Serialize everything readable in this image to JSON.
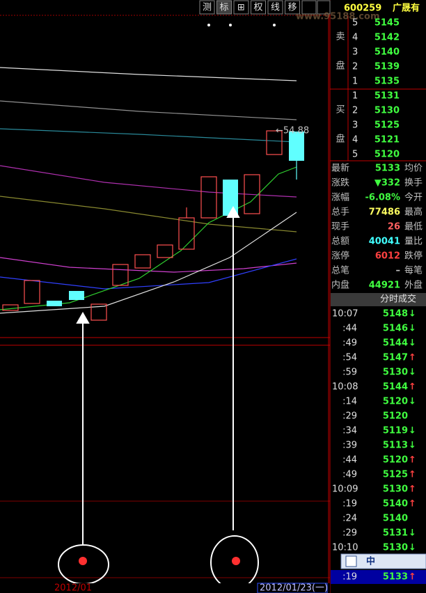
{
  "toolbar": {
    "buttons": [
      "测",
      "标",
      "⊞",
      "权",
      "线",
      "移"
    ],
    "stock_code": "600259",
    "stock_name": "广晟有",
    "watermark": "www.95188.com"
  },
  "order_book": {
    "sell_label": [
      "卖",
      "盘"
    ],
    "buy_label": [
      "买",
      "盘"
    ],
    "sell": [
      {
        "level": "5",
        "price": "5145"
      },
      {
        "level": "4",
        "price": "5142"
      },
      {
        "level": "3",
        "price": "5140"
      },
      {
        "level": "2",
        "price": "5139"
      },
      {
        "level": "1",
        "price": "5135"
      }
    ],
    "buy": [
      {
        "level": "1",
        "price": "5131"
      },
      {
        "level": "2",
        "price": "5130"
      },
      {
        "level": "3",
        "price": "5125"
      },
      {
        "level": "4",
        "price": "5121"
      },
      {
        "level": "5",
        "price": "5120"
      }
    ]
  },
  "quotes": [
    {
      "label": "最新",
      "value": "5133",
      "label2": "均价",
      "color": "#40ff40"
    },
    {
      "label": "涨跌",
      "value": "▼332",
      "label2": "换手",
      "color": "#40ff40"
    },
    {
      "label": "涨幅",
      "value": "-6.08%",
      "label2": "今开",
      "color": "#40ff40"
    },
    {
      "label": "总手",
      "value": "77486",
      "label2": "最高",
      "color": "#ffff60"
    },
    {
      "label": "现手",
      "value": "26",
      "label2": "最低",
      "color": "#ff6060"
    },
    {
      "label": "总额",
      "value": "40041",
      "label2": "量比",
      "color": "#40ffff"
    },
    {
      "label": "涨停",
      "value": "6012",
      "label2": "跌停",
      "color": "#ff4040"
    },
    {
      "label": "总笔",
      "value": "–",
      "label2": "每笔",
      "color": "#c0c0c0"
    },
    {
      "label": "内盘",
      "value": "44921",
      "label2": "外盘",
      "color": "#40ff40"
    }
  ],
  "ticks_title": "分时成交",
  "ticks": [
    {
      "time": "10:07",
      "price": "5148",
      "dir": "↓"
    },
    {
      "time": ":44",
      "price": "5146",
      "dir": "↓"
    },
    {
      "time": ":49",
      "price": "5144",
      "dir": "↓"
    },
    {
      "time": ":54",
      "price": "5147",
      "dir": "↑"
    },
    {
      "time": ":59",
      "price": "5130",
      "dir": "↓"
    },
    {
      "time": "10:08",
      "price": "5144",
      "dir": "↑"
    },
    {
      "time": ":14",
      "price": "5120",
      "dir": "↓"
    },
    {
      "time": ":29",
      "price": "5120",
      "dir": ""
    },
    {
      "time": ":34",
      "price": "5119",
      "dir": "↓"
    },
    {
      "time": ":39",
      "price": "5113",
      "dir": "↓"
    },
    {
      "time": ":44",
      "price": "5120",
      "dir": "↑"
    },
    {
      "time": ":49",
      "price": "5125",
      "dir": "↑"
    },
    {
      "time": "10:09",
      "price": "5130",
      "dir": "↑"
    },
    {
      "time": ":19",
      "price": "5140",
      "dir": "↑"
    },
    {
      "time": ":24",
      "price": "5140",
      "dir": ""
    },
    {
      "time": ":29",
      "price": "5131",
      "dir": "↓"
    },
    {
      "time": "10:10",
      "price": "5130",
      "dir": "↓"
    },
    {
      "time": ":19",
      "price": "5133",
      "dir": "↑"
    }
  ],
  "ime": "中",
  "chart": {
    "annotation": "←54.88",
    "date_left": "2012/01",
    "date_right": "2012/01/23(一)"
  }
}
